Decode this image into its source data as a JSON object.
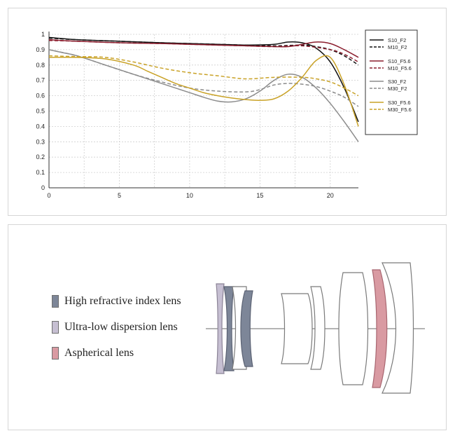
{
  "chart_data": {
    "type": "line",
    "xlim": [
      0,
      22
    ],
    "ylim": [
      0,
      1
    ],
    "x_ticks": [
      0,
      5,
      10,
      15,
      20
    ],
    "y_ticks": [
      0,
      0.1,
      0.2,
      0.3,
      0.4,
      0.5,
      0.6,
      0.7,
      0.8,
      0.9,
      1
    ],
    "y_tick_labels": [
      "0",
      "0.1",
      "0.2",
      "0.3",
      "0.4",
      "0.5",
      "0.6",
      "0.7",
      "0.8",
      "0.9",
      "1"
    ],
    "grid": true,
    "legend_position": "right",
    "series": [
      {
        "name": "S10_F2",
        "color": "#111111",
        "dash": "solid",
        "x": [
          0,
          2,
          5,
          8,
          10,
          12,
          14,
          16,
          17,
          18,
          19,
          20,
          21,
          22
        ],
        "y": [
          0.98,
          0.965,
          0.955,
          0.945,
          0.94,
          0.935,
          0.93,
          0.935,
          0.95,
          0.945,
          0.91,
          0.82,
          0.65,
          0.43
        ]
      },
      {
        "name": "M10_F2",
        "color": "#111111",
        "dash": "dashed",
        "x": [
          0,
          2,
          5,
          8,
          10,
          12,
          14,
          16,
          18,
          19,
          20,
          21,
          22
        ],
        "y": [
          0.975,
          0.965,
          0.955,
          0.945,
          0.94,
          0.935,
          0.93,
          0.925,
          0.93,
          0.92,
          0.9,
          0.86,
          0.8
        ]
      },
      {
        "name": "S10_F5.6",
        "color": "#8b1e2e",
        "dash": "solid",
        "x": [
          0,
          2,
          5,
          8,
          10,
          12,
          14,
          16,
          17,
          18,
          19,
          20,
          21,
          22
        ],
        "y": [
          0.965,
          0.955,
          0.945,
          0.94,
          0.935,
          0.93,
          0.925,
          0.92,
          0.92,
          0.935,
          0.95,
          0.94,
          0.9,
          0.85
        ]
      },
      {
        "name": "M10_F5.6",
        "color": "#8b1e2e",
        "dash": "dashed",
        "x": [
          0,
          2,
          5,
          8,
          10,
          12,
          14,
          16,
          18,
          20,
          21,
          22
        ],
        "y": [
          0.96,
          0.955,
          0.945,
          0.94,
          0.935,
          0.93,
          0.925,
          0.92,
          0.925,
          0.9,
          0.87,
          0.82
        ]
      },
      {
        "name": "S30_F2",
        "color": "#8c8c8c",
        "dash": "solid",
        "x": [
          0,
          1,
          2,
          4,
          6,
          8,
          10,
          11,
          12,
          13,
          14,
          15,
          16,
          17,
          18,
          19,
          20,
          21,
          22
        ],
        "y": [
          0.9,
          0.88,
          0.86,
          0.8,
          0.74,
          0.68,
          0.62,
          0.59,
          0.565,
          0.56,
          0.58,
          0.63,
          0.7,
          0.74,
          0.72,
          0.65,
          0.55,
          0.43,
          0.3
        ]
      },
      {
        "name": "M30_F2",
        "color": "#8c8c8c",
        "dash": "dashed",
        "x": [
          0,
          2,
          4,
          6,
          8,
          10,
          12,
          14,
          15,
          16,
          17,
          18,
          19,
          20,
          21,
          22
        ],
        "y": [
          0.9,
          0.86,
          0.8,
          0.74,
          0.69,
          0.65,
          0.63,
          0.625,
          0.64,
          0.67,
          0.68,
          0.675,
          0.66,
          0.63,
          0.59,
          0.53
        ]
      },
      {
        "name": "S30_F5.6",
        "color": "#c9a227",
        "dash": "solid",
        "x": [
          0,
          2,
          4,
          6,
          7,
          8,
          9,
          10,
          11,
          12,
          13,
          14,
          15,
          16,
          17,
          18,
          19,
          20,
          21,
          22
        ],
        "y": [
          0.85,
          0.85,
          0.84,
          0.8,
          0.76,
          0.72,
          0.68,
          0.65,
          0.62,
          0.6,
          0.585,
          0.575,
          0.57,
          0.58,
          0.63,
          0.72,
          0.83,
          0.85,
          0.67,
          0.4
        ]
      },
      {
        "name": "M30_F5.6",
        "color": "#c9a227",
        "dash": "dashed",
        "x": [
          0,
          2,
          4,
          6,
          8,
          10,
          12,
          14,
          16,
          18,
          19,
          20,
          21,
          22
        ],
        "y": [
          0.86,
          0.855,
          0.85,
          0.82,
          0.78,
          0.75,
          0.73,
          0.71,
          0.72,
          0.72,
          0.71,
          0.69,
          0.65,
          0.6
        ]
      }
    ]
  },
  "lens_legend": [
    {
      "label": "High refractive index lens",
      "color": "#7d8698"
    },
    {
      "label": "Ultra-low dispersion lens",
      "color": "#c6bfd2"
    },
    {
      "label": "Aspherical lens",
      "color": "#d99aa2"
    }
  ]
}
